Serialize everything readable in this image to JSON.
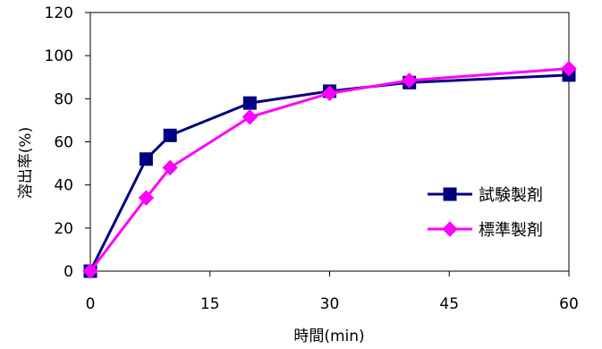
{
  "chart_data": {
    "type": "line",
    "xlabel": "時間(min)",
    "ylabel": "溶出率(%)",
    "xlim": [
      0,
      60
    ],
    "ylim": [
      0,
      120
    ],
    "xticks": [
      0,
      15,
      30,
      45,
      60
    ],
    "yticks": [
      0,
      20,
      40,
      60,
      80,
      100,
      120
    ],
    "grid": false,
    "legend_position": "bottom-right",
    "series": [
      {
        "name": "試験製剤",
        "marker": "square",
        "color": "#000080",
        "x": [
          0,
          7,
          10,
          20,
          30,
          40,
          60
        ],
        "values": [
          0,
          52,
          63,
          78,
          83.5,
          87.5,
          91
        ]
      },
      {
        "name": "標準製剤",
        "marker": "diamond",
        "color": "#FF00FF",
        "x": [
          0,
          7,
          10,
          20,
          30,
          40,
          60
        ],
        "values": [
          0,
          34,
          48,
          71.5,
          82.5,
          88.5,
          94
        ]
      }
    ]
  }
}
